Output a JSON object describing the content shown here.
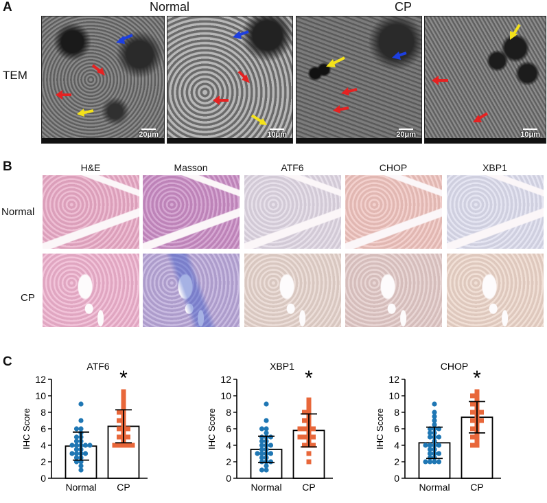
{
  "panel_a": {
    "letter": "A",
    "col_headers": [
      "Normal",
      "CP"
    ],
    "row_label": "TEM",
    "scales": [
      "20μm",
      "10μm",
      "20μm",
      "10μm"
    ],
    "arrow_colors": {
      "red": "#e52222",
      "blue": "#1d3fe0",
      "yellow": "#f4e21a"
    }
  },
  "panel_b": {
    "letter": "B",
    "stains": [
      "H&E",
      "Masson",
      "ATF6",
      "CHOP",
      "XBP1"
    ],
    "rows": [
      "Normal",
      "CP"
    ],
    "tile_colors": {
      "Normal": [
        "#e9a9c6",
        "#c98bc4",
        "#dfd6e3",
        "#efc2bd",
        "#dcdced"
      ],
      "CP": [
        "#eeb0cd",
        "#b8a6d8",
        "#e6d3cc",
        "#e2c9c7",
        "#ecd5c9"
      ]
    }
  },
  "panel_c": {
    "letter": "C",
    "colors": {
      "normal": "#1f77b4",
      "cp": "#e8673a"
    }
  },
  "chart_data": [
    {
      "type": "bar",
      "title": "ATF6",
      "ylabel": "IHC Score",
      "categories": [
        "Normal",
        "CP"
      ],
      "values": [
        3.9,
        6.3
      ],
      "errors": [
        1.7,
        2.0
      ],
      "ylim": [
        0,
        12
      ],
      "yticks": [
        0,
        2,
        4,
        6,
        8,
        10,
        12
      ],
      "significance": [
        "",
        "*"
      ],
      "points": {
        "Normal": [
          1,
          1.5,
          2,
          2,
          2.5,
          2.5,
          3,
          3,
          3,
          3,
          3.5,
          3.5,
          4,
          4,
          4,
          4,
          4,
          4.5,
          4.5,
          5,
          5,
          5.5,
          6,
          6,
          7,
          9
        ],
        "CP": [
          4,
          4,
          4,
          4,
          4,
          4.5,
          5,
          5,
          5,
          5.5,
          6,
          6,
          6,
          6.5,
          7,
          7,
          7.5,
          8,
          8,
          8.5,
          9,
          9.5,
          10,
          10.5
        ]
      }
    },
    {
      "type": "bar",
      "title": "XBP1",
      "ylabel": "IHC Score",
      "categories": [
        "Normal",
        "CP"
      ],
      "values": [
        3.5,
        5.8
      ],
      "errors": [
        1.6,
        2.0
      ],
      "ylim": [
        0,
        12
      ],
      "yticks": [
        0,
        2,
        4,
        6,
        8,
        10,
        12
      ],
      "significance": [
        "",
        "*"
      ],
      "points": {
        "Normal": [
          1,
          1,
          1.5,
          2,
          2,
          2,
          2.5,
          2.5,
          3,
          3,
          3,
          3,
          3.5,
          3.5,
          4,
          4,
          4,
          4.5,
          4.5,
          5,
          5,
          5,
          5.5,
          6,
          6,
          7,
          9
        ],
        "CP": [
          2,
          3,
          4,
          4,
          4,
          4.5,
          5,
          5,
          5,
          5,
          5.5,
          6,
          6,
          6,
          6,
          6.5,
          7,
          7,
          7.5,
          8,
          8,
          8.5,
          9,
          9.5
        ]
      }
    },
    {
      "type": "bar",
      "title": "CHOP",
      "ylabel": "IHC Score",
      "categories": [
        "Normal",
        "CP"
      ],
      "values": [
        4.3,
        7.4
      ],
      "errors": [
        1.9,
        1.9
      ],
      "ylim": [
        0,
        12
      ],
      "yticks": [
        0,
        2,
        4,
        6,
        8,
        10,
        12
      ],
      "significance": [
        "",
        "*"
      ],
      "points": {
        "Normal": [
          2,
          2,
          2,
          2,
          2.5,
          2.5,
          3,
          3,
          3,
          3.5,
          3.5,
          4,
          4,
          4,
          4,
          4.5,
          5,
          5,
          5,
          5.5,
          5.5,
          6,
          6,
          6,
          6.5,
          7,
          7.5,
          8,
          9
        ],
        "CP": [
          4,
          4,
          4.5,
          5,
          5,
          5.5,
          6,
          6,
          6.5,
          7,
          7,
          7,
          7.5,
          8,
          8,
          8,
          8.5,
          9,
          9,
          9.5,
          10,
          10,
          10.5
        ]
      }
    }
  ]
}
